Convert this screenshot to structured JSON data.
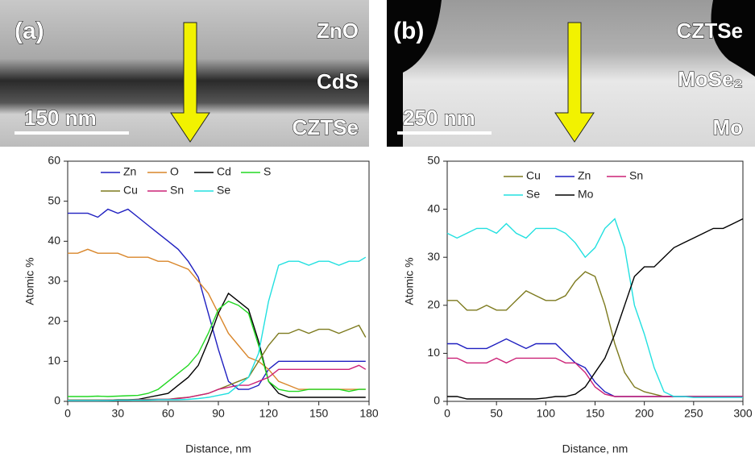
{
  "images": [
    {
      "label": "(a)",
      "layers": [
        "ZnO",
        "CdS",
        "CZTSe"
      ],
      "scale_bar": "150 nm"
    },
    {
      "label": "(b)",
      "layers": [
        "CZTSe",
        "MoSe₂",
        "Mo"
      ],
      "scale_bar": "250 nm"
    }
  ],
  "chart_data": [
    {
      "type": "line",
      "x_label": "Distance, nm",
      "y_label": "Atomic %",
      "x": [
        0,
        6,
        12,
        18,
        24,
        30,
        36,
        42,
        48,
        54,
        60,
        66,
        72,
        78,
        84,
        90,
        96,
        102,
        108,
        114,
        120,
        126,
        132,
        138,
        144,
        150,
        156,
        162,
        168,
        174,
        178
      ],
      "xlim": [
        0,
        180
      ],
      "xticks": [
        0,
        30,
        60,
        90,
        120,
        150,
        180
      ],
      "ylim": [
        0,
        60
      ],
      "yticks": [
        0,
        10,
        20,
        30,
        40,
        50,
        60
      ],
      "series": [
        {
          "name": "Zn",
          "color": "#1f1fc0",
          "values": [
            47,
            47,
            47,
            46,
            48,
            47,
            48,
            46,
            44,
            42,
            40,
            38,
            35,
            31,
            22,
            13,
            5,
            3,
            3,
            4,
            8,
            10,
            10,
            10,
            10,
            10,
            10,
            10,
            10,
            10,
            10
          ]
        },
        {
          "name": "O",
          "color": "#d9862a",
          "values": [
            37,
            37,
            38,
            37,
            37,
            37,
            36,
            36,
            36,
            35,
            35,
            34,
            33,
            30,
            27,
            22,
            17,
            14,
            11,
            10,
            8,
            5,
            4,
            3,
            3,
            3,
            3,
            3,
            3,
            3,
            3
          ]
        },
        {
          "name": "Cd",
          "color": "#000000",
          "values": [
            0.3,
            0.3,
            0.3,
            0.3,
            0.3,
            0.4,
            0.4,
            0.5,
            1,
            1.5,
            2,
            4,
            6,
            9,
            15,
            22,
            27,
            25,
            23,
            15,
            5,
            2,
            1,
            1,
            1,
            1,
            1,
            1,
            1,
            1,
            1
          ]
        },
        {
          "name": "S",
          "color": "#22d822",
          "values": [
            1.2,
            1.2,
            1.2,
            1.3,
            1.2,
            1.3,
            1.4,
            1.5,
            2,
            3,
            5,
            7,
            9,
            12,
            17,
            23,
            25,
            24,
            22,
            14,
            5,
            3,
            2.5,
            2.5,
            3,
            3,
            3,
            3,
            2.5,
            3,
            3
          ]
        },
        {
          "name": "Cu",
          "color": "#7d7a1e",
          "values": [
            0.3,
            0.3,
            0.3,
            0.3,
            0.3,
            0.4,
            0.4,
            0.4,
            0.5,
            0.5,
            0.5,
            0.8,
            1,
            1.5,
            2,
            3,
            4,
            5,
            6,
            10,
            14,
            17,
            17,
            18,
            17,
            18,
            18,
            17,
            18,
            19,
            16
          ]
        },
        {
          "name": "Sn",
          "color": "#cc2277",
          "values": [
            0.2,
            0.2,
            0.2,
            0.2,
            0.3,
            0.3,
            0.3,
            0.4,
            0.4,
            0.5,
            0.5,
            0.7,
            1,
            1.5,
            2,
            3,
            3.5,
            4,
            4,
            5,
            6,
            8,
            8,
            8,
            8,
            8,
            8,
            8,
            8,
            9,
            8
          ]
        },
        {
          "name": "Se",
          "color": "#22e0e0",
          "values": [
            0.2,
            0.2,
            0.2,
            0.2,
            0.2,
            0.3,
            0.3,
            0.3,
            0.3,
            0.4,
            0.4,
            0.4,
            0.5,
            0.7,
            1,
            1.5,
            2,
            4,
            6,
            12,
            25,
            34,
            35,
            35,
            34,
            35,
            35,
            34,
            35,
            35,
            36
          ]
        }
      ]
    },
    {
      "type": "line",
      "x_label": "Distance, nm",
      "y_label": "Atomic %",
      "x": [
        0,
        10,
        20,
        30,
        40,
        50,
        60,
        70,
        80,
        90,
        100,
        110,
        120,
        130,
        140,
        150,
        160,
        170,
        180,
        190,
        200,
        210,
        220,
        230,
        240,
        250,
        260,
        270,
        280,
        290,
        300
      ],
      "xlim": [
        0,
        300
      ],
      "xticks": [
        0,
        50,
        100,
        150,
        200,
        250,
        300
      ],
      "ylim": [
        0,
        50
      ],
      "yticks": [
        0,
        10,
        20,
        30,
        40,
        50
      ],
      "series": [
        {
          "name": "Cu",
          "color": "#7d7a1e",
          "values": [
            21,
            21,
            19,
            19,
            20,
            19,
            19,
            21,
            23,
            22,
            21,
            21,
            22,
            25,
            27,
            26,
            20,
            12,
            6,
            3,
            2,
            1.5,
            1,
            1,
            1,
            1,
            1,
            1,
            1,
            1,
            1
          ]
        },
        {
          "name": "Zn",
          "color": "#1f1fc0",
          "values": [
            12,
            12,
            11,
            11,
            11,
            12,
            13,
            12,
            11,
            12,
            12,
            12,
            10,
            8,
            7,
            4,
            2,
            1,
            1,
            1,
            1,
            1,
            1,
            1,
            1,
            1,
            1,
            1,
            1,
            1,
            1
          ]
        },
        {
          "name": "Sn",
          "color": "#cc2277",
          "values": [
            9,
            9,
            8,
            8,
            8,
            9,
            8,
            9,
            9,
            9,
            9,
            9,
            8,
            8,
            6,
            3,
            1.5,
            1,
            1,
            1,
            1,
            1,
            1,
            1,
            1,
            1,
            1,
            1,
            1,
            1,
            1
          ]
        },
        {
          "name": "Se",
          "color": "#22e0e0",
          "values": [
            35,
            34,
            35,
            36,
            36,
            35,
            37,
            35,
            34,
            36,
            36,
            36,
            35,
            33,
            30,
            32,
            36,
            38,
            32,
            20,
            14,
            7,
            2,
            1,
            1,
            0.8,
            0.8,
            0.8,
            0.8,
            0.8,
            0.8
          ]
        },
        {
          "name": "Mo",
          "color": "#000000",
          "values": [
            1,
            1,
            0.5,
            0.5,
            0.5,
            0.5,
            0.5,
            0.5,
            0.5,
            0.5,
            0.7,
            1,
            1,
            1.5,
            3,
            6,
            9,
            14,
            20,
            26,
            28,
            28,
            30,
            32,
            33,
            34,
            35,
            36,
            36,
            37,
            38
          ]
        }
      ]
    }
  ]
}
